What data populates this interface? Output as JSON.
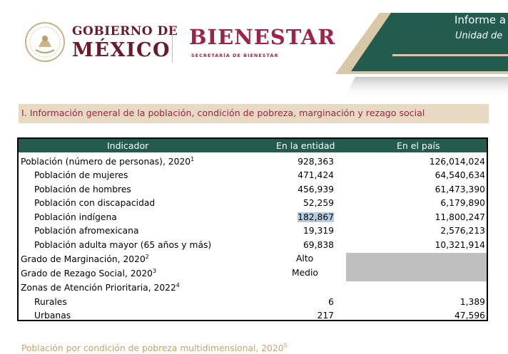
{
  "header": {
    "gob_line1": "GOBIERNO DE",
    "gob_line2": "MÉXICO",
    "bienestar": "BIENESTAR",
    "bienestar_sub": "SECRETARÍA DE BIENESTAR",
    "banner_title": "Informe a",
    "banner_subtitle": "Unidad de",
    "colors": {
      "guinda": "#9d2449",
      "green": "#235b4e",
      "gold": "#bc955c"
    }
  },
  "section": {
    "title": "I. Información general de la población, condición de pobreza, marginación y rezago social"
  },
  "table": {
    "headers": [
      "Indicador",
      "En la entidad",
      "En el país"
    ],
    "rows": [
      {
        "label": "Población (número de personas), 2020",
        "sup": "1",
        "entidad": "928,363",
        "pais": "126,014,024"
      },
      {
        "label": "Población de mujeres",
        "sup": "",
        "entidad": "471,424",
        "pais": "64,540,634"
      },
      {
        "label": "Población de hombres",
        "sup": "",
        "entidad": "456,939",
        "pais": "61,473,390"
      },
      {
        "label": "Población con discapacidad",
        "sup": "",
        "entidad": "52,259",
        "pais": "6,179,890"
      },
      {
        "label": "Población indígena",
        "sup": "",
        "entidad": "182,867",
        "pais": "11,800,247"
      },
      {
        "label": "Población afromexicana",
        "sup": "",
        "entidad": "19,319",
        "pais": "2,576,213"
      },
      {
        "label": "Población adulta mayor (65 años y más)",
        "sup": "",
        "entidad": "69,838",
        "pais": "10,321,914"
      },
      {
        "label": "Grado de Marginación, 2020",
        "sup": "2",
        "entidad": "Alto",
        "pais": ""
      },
      {
        "label": "Grado de Rezago Social, 2020",
        "sup": "3",
        "entidad": "Medio",
        "pais": ""
      },
      {
        "label": "Zonas de Atención Prioritaria, 2022",
        "sup": "4",
        "entidad": "",
        "pais": ""
      },
      {
        "label": "Rurales",
        "sup": "",
        "entidad": "6",
        "pais": "1,389"
      },
      {
        "label": "Urbanas",
        "sup": "",
        "entidad": "217",
        "pais": "47,596"
      }
    ]
  },
  "footer": {
    "text": "Población por condición de pobreza multidimensional, 2020",
    "sup": "5"
  }
}
